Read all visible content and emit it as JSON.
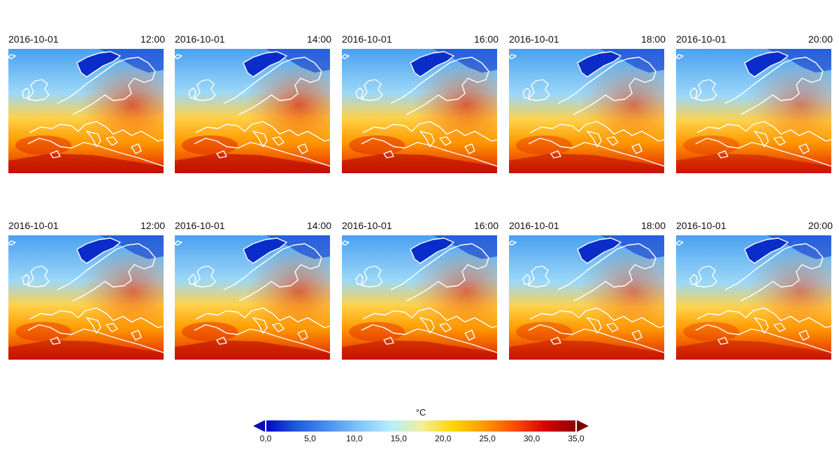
{
  "panels": [
    {
      "date": "2016-10-01",
      "time": "12:00",
      "row": 0,
      "col": 0,
      "warmth": 0.95
    },
    {
      "date": "2016-10-01",
      "time": "14:00",
      "row": 0,
      "col": 1,
      "warmth": 1.0
    },
    {
      "date": "2016-10-01",
      "time": "16:00",
      "row": 0,
      "col": 2,
      "warmth": 0.95
    },
    {
      "date": "2016-10-01",
      "time": "18:00",
      "row": 0,
      "col": 3,
      "warmth": 0.8
    },
    {
      "date": "2016-10-01",
      "time": "20:00",
      "row": 0,
      "col": 4,
      "warmth": 0.7
    },
    {
      "date": "2016-10-01",
      "time": "12:00",
      "row": 1,
      "col": 0,
      "warmth": 0.85
    },
    {
      "date": "2016-10-01",
      "time": "14:00",
      "row": 1,
      "col": 1,
      "warmth": 0.9
    },
    {
      "date": "2016-10-01",
      "time": "16:00",
      "row": 1,
      "col": 2,
      "warmth": 0.85
    },
    {
      "date": "2016-10-01",
      "time": "18:00",
      "row": 1,
      "col": 3,
      "warmth": 0.75
    },
    {
      "date": "2016-10-01",
      "time": "20:00",
      "row": 1,
      "col": 4,
      "warmth": 0.7
    }
  ],
  "colorbar": {
    "unit": "°C",
    "min": 0,
    "max": 35,
    "ticks": [
      "0,0",
      "5,0",
      "10,0",
      "15,0",
      "20,0",
      "25,0",
      "30,0",
      "35,0"
    ],
    "stops": [
      "#0000c8",
      "#1e5adc",
      "#4a8ef0",
      "#7ec4f8",
      "#b4ecff",
      "#f0f0a0",
      "#ffd700",
      "#ff9a00",
      "#ff4a00",
      "#d80000",
      "#8a0000"
    ],
    "under_color": "#0a10b0",
    "over_color": "#7a0000"
  },
  "map_colors": {
    "coast": "#ffffff",
    "cold": "#0a2cc8",
    "cool": "#4aa0f0",
    "mild": "#9cd8f8",
    "warm": "#ff9a00",
    "hot": "#e02000"
  }
}
